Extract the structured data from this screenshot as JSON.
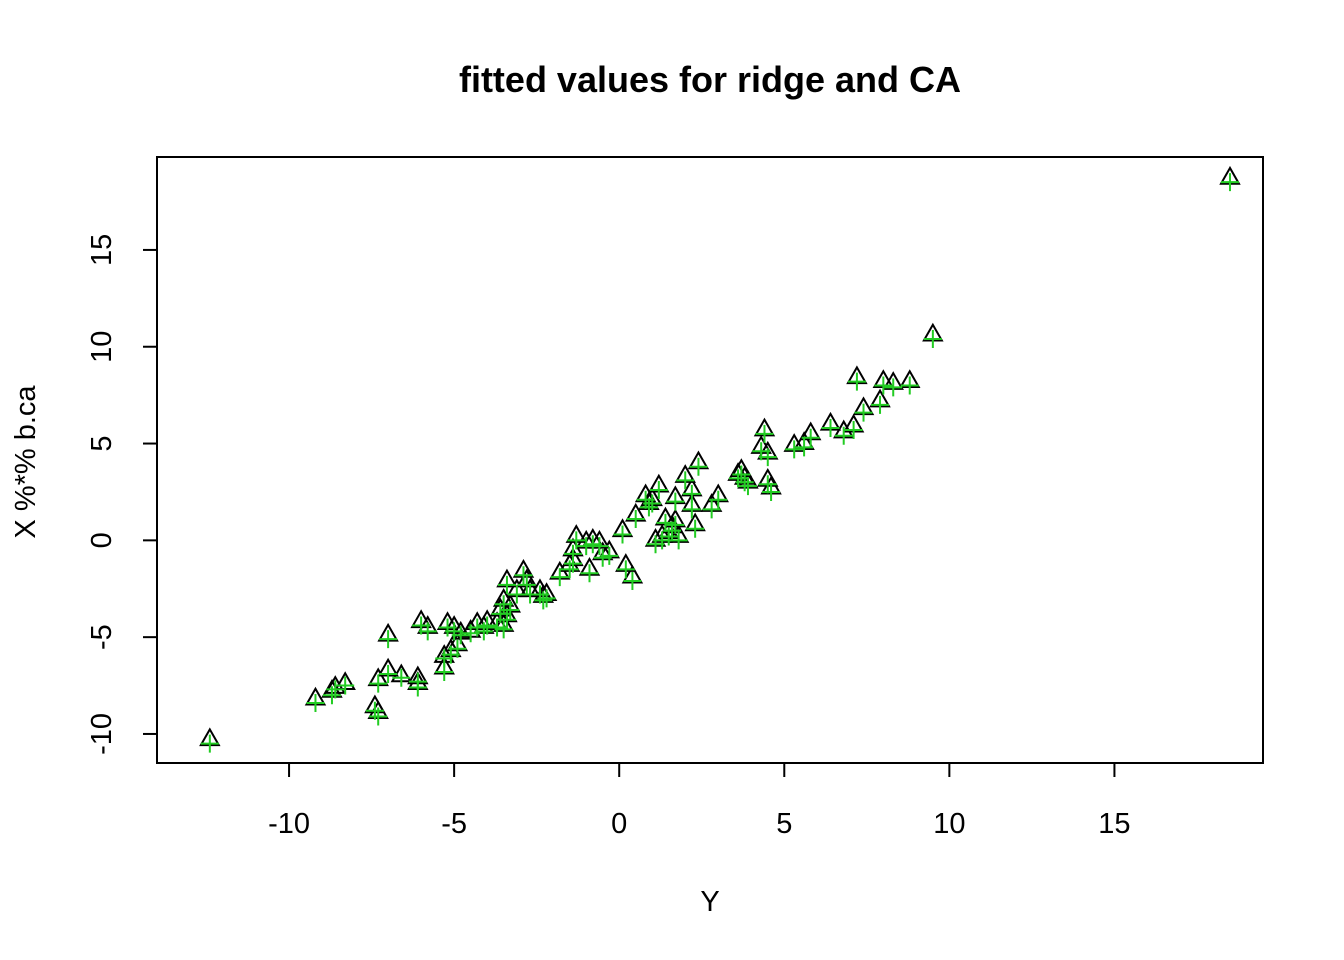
{
  "chart_data": {
    "type": "scatter",
    "title": "fitted values for ridge and CA",
    "xlabel": "Y",
    "ylabel": "X %*% b.ca",
    "xlim": [
      -14.0,
      19.5
    ],
    "ylim": [
      -11.5,
      19.8
    ],
    "x_ticks": [
      "-10",
      "-5",
      "0",
      "5",
      "10",
      "15"
    ],
    "y_ticks": [
      "-10",
      "-5",
      "0",
      "5",
      "10",
      "15"
    ],
    "grid": false,
    "legend": "none",
    "series": [
      {
        "marker": "triangle",
        "color": "#000000",
        "points": [
          [
            -12.4,
            -10.3
          ],
          [
            -9.2,
            -8.2
          ],
          [
            -8.7,
            -7.8
          ],
          [
            -8.6,
            -7.6
          ],
          [
            -8.3,
            -7.4
          ],
          [
            -7.4,
            -8.6
          ],
          [
            -7.3,
            -8.9
          ],
          [
            -7.3,
            -7.2
          ],
          [
            -7.0,
            -4.9
          ],
          [
            -7.0,
            -6.7
          ],
          [
            -6.6,
            -7.0
          ],
          [
            -6.1,
            -7.4
          ],
          [
            -6.1,
            -7.1
          ],
          [
            -6.0,
            -4.2
          ],
          [
            -5.8,
            -4.5
          ],
          [
            -5.3,
            -6.6
          ],
          [
            -5.3,
            -6.0
          ],
          [
            -5.2,
            -4.3
          ],
          [
            -5.1,
            -5.7
          ],
          [
            -5.0,
            -4.5
          ],
          [
            -4.9,
            -5.4
          ],
          [
            -4.8,
            -4.8
          ],
          [
            -4.5,
            -4.7
          ],
          [
            -4.3,
            -4.3
          ],
          [
            -4.1,
            -4.5
          ],
          [
            -4.0,
            -4.2
          ],
          [
            -3.7,
            -4.3
          ],
          [
            -3.6,
            -3.6
          ],
          [
            -3.5,
            -4.4
          ],
          [
            -3.5,
            -3.1
          ],
          [
            -3.4,
            -3.9
          ],
          [
            -3.4,
            -2.1
          ],
          [
            -3.3,
            -3.4
          ],
          [
            -3.1,
            -2.6
          ],
          [
            -2.9,
            -1.6
          ],
          [
            -2.8,
            -2.1
          ],
          [
            -2.7,
            -2.6
          ],
          [
            -2.4,
            -2.6
          ],
          [
            -2.3,
            -2.9
          ],
          [
            -2.2,
            -2.8
          ],
          [
            -1.8,
            -1.7
          ],
          [
            -1.5,
            -1.3
          ],
          [
            -1.4,
            -1.0
          ],
          [
            -1.4,
            -0.5
          ],
          [
            -1.3,
            0.2
          ],
          [
            -1.0,
            -0.1
          ],
          [
            -0.9,
            -1.5
          ],
          [
            -0.8,
            0.0
          ],
          [
            -0.6,
            -0.1
          ],
          [
            -0.5,
            -0.7
          ],
          [
            -0.3,
            -0.6
          ],
          [
            0.1,
            0.5
          ],
          [
            0.2,
            -1.3
          ],
          [
            0.4,
            -1.9
          ],
          [
            0.5,
            1.3
          ],
          [
            0.8,
            2.3
          ],
          [
            0.9,
            1.9
          ],
          [
            1.0,
            2.1
          ],
          [
            1.1,
            0.0
          ],
          [
            1.2,
            2.8
          ],
          [
            1.3,
            0.2
          ],
          [
            1.4,
            1.1
          ],
          [
            1.5,
            0.4
          ],
          [
            1.6,
            0.7
          ],
          [
            1.7,
            1.0
          ],
          [
            1.7,
            2.2
          ],
          [
            1.8,
            0.2
          ],
          [
            2.0,
            3.3
          ],
          [
            2.2,
            2.6
          ],
          [
            2.2,
            1.8
          ],
          [
            2.3,
            0.8
          ],
          [
            2.4,
            4.0
          ],
          [
            2.8,
            1.8
          ],
          [
            3.0,
            2.3
          ],
          [
            3.6,
            3.4
          ],
          [
            3.7,
            3.6
          ],
          [
            3.8,
            3.2
          ],
          [
            3.9,
            3.0
          ],
          [
            4.3,
            4.8
          ],
          [
            4.4,
            5.7
          ],
          [
            4.5,
            3.1
          ],
          [
            4.5,
            4.5
          ],
          [
            4.6,
            2.7
          ],
          [
            5.3,
            4.9
          ],
          [
            5.6,
            5.0
          ],
          [
            5.8,
            5.5
          ],
          [
            6.4,
            6.0
          ],
          [
            6.8,
            5.6
          ],
          [
            7.1,
            5.9
          ],
          [
            7.2,
            8.4
          ],
          [
            7.4,
            6.8
          ],
          [
            7.9,
            7.2
          ],
          [
            8.0,
            8.2
          ],
          [
            8.3,
            8.1
          ],
          [
            8.8,
            8.2
          ],
          [
            9.5,
            10.6
          ],
          [
            18.5,
            18.7
          ]
        ]
      },
      {
        "marker": "plus",
        "color": "#22cc22",
        "points": [
          [
            -12.4,
            -10.5
          ],
          [
            -9.2,
            -8.4
          ],
          [
            -8.7,
            -8.0
          ],
          [
            -8.6,
            -7.7
          ],
          [
            -8.3,
            -7.5
          ],
          [
            -7.4,
            -8.8
          ],
          [
            -7.3,
            -9.1
          ],
          [
            -7.3,
            -7.4
          ],
          [
            -7.0,
            -5.1
          ],
          [
            -7.0,
            -6.9
          ],
          [
            -6.6,
            -7.1
          ],
          [
            -6.1,
            -7.6
          ],
          [
            -6.1,
            -7.3
          ],
          [
            -6.0,
            -4.4
          ],
          [
            -5.8,
            -4.7
          ],
          [
            -5.3,
            -6.8
          ],
          [
            -5.3,
            -6.1
          ],
          [
            -5.2,
            -4.5
          ],
          [
            -5.1,
            -5.9
          ],
          [
            -5.0,
            -4.7
          ],
          [
            -4.9,
            -5.6
          ],
          [
            -4.8,
            -4.9
          ],
          [
            -4.5,
            -4.8
          ],
          [
            -4.3,
            -4.5
          ],
          [
            -4.1,
            -4.7
          ],
          [
            -4.0,
            -4.4
          ],
          [
            -3.7,
            -4.5
          ],
          [
            -3.6,
            -3.8
          ],
          [
            -3.5,
            -4.6
          ],
          [
            -3.5,
            -3.3
          ],
          [
            -3.4,
            -4.1
          ],
          [
            -3.4,
            -2.3
          ],
          [
            -3.3,
            -3.6
          ],
          [
            -3.1,
            -2.8
          ],
          [
            -2.9,
            -1.8
          ],
          [
            -2.8,
            -2.3
          ],
          [
            -2.7,
            -2.8
          ],
          [
            -2.4,
            -2.8
          ],
          [
            -2.3,
            -3.1
          ],
          [
            -2.2,
            -3.0
          ],
          [
            -1.8,
            -1.9
          ],
          [
            -1.5,
            -1.5
          ],
          [
            -1.4,
            -1.2
          ],
          [
            -1.4,
            -0.7
          ],
          [
            -1.3,
            0.0
          ],
          [
            -1.0,
            -0.3
          ],
          [
            -0.9,
            -1.7
          ],
          [
            -0.8,
            -0.2
          ],
          [
            -0.6,
            -0.3
          ],
          [
            -0.5,
            -0.9
          ],
          [
            -0.3,
            -0.8
          ],
          [
            0.1,
            0.3
          ],
          [
            0.2,
            -1.5
          ],
          [
            0.4,
            -2.1
          ],
          [
            0.5,
            1.1
          ],
          [
            0.8,
            2.1
          ],
          [
            0.9,
            1.7
          ],
          [
            1.0,
            1.9
          ],
          [
            1.1,
            -0.2
          ],
          [
            1.2,
            2.6
          ],
          [
            1.3,
            0.0
          ],
          [
            1.4,
            0.9
          ],
          [
            1.5,
            0.2
          ],
          [
            1.6,
            0.5
          ],
          [
            1.7,
            0.8
          ],
          [
            1.7,
            2.0
          ],
          [
            1.8,
            0.0
          ],
          [
            2.0,
            3.1
          ],
          [
            2.2,
            2.4
          ],
          [
            2.2,
            1.6
          ],
          [
            2.3,
            0.6
          ],
          [
            2.4,
            3.8
          ],
          [
            2.8,
            1.6
          ],
          [
            3.0,
            2.1
          ],
          [
            3.6,
            3.2
          ],
          [
            3.7,
            3.4
          ],
          [
            3.8,
            3.0
          ],
          [
            3.9,
            2.8
          ],
          [
            4.3,
            4.6
          ],
          [
            4.4,
            5.5
          ],
          [
            4.5,
            2.9
          ],
          [
            4.5,
            4.3
          ],
          [
            4.6,
            2.5
          ],
          [
            5.3,
            4.7
          ],
          [
            5.6,
            4.8
          ],
          [
            5.8,
            5.3
          ],
          [
            6.4,
            5.8
          ],
          [
            6.8,
            5.4
          ],
          [
            7.1,
            5.7
          ],
          [
            7.2,
            8.2
          ],
          [
            7.4,
            6.6
          ],
          [
            7.9,
            7.0
          ],
          [
            8.0,
            8.0
          ],
          [
            8.3,
            7.9
          ],
          [
            8.8,
            8.0
          ],
          [
            9.5,
            10.4
          ],
          [
            18.5,
            18.5
          ]
        ]
      }
    ]
  }
}
